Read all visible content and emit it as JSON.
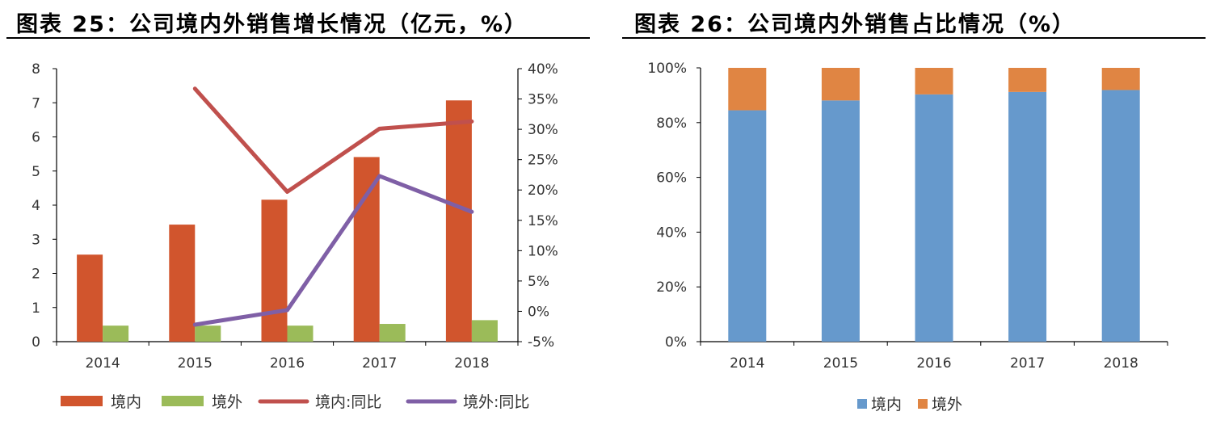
{
  "left_panel": {
    "title": "图表 25：公司境内外销售增长情况（亿元，%）"
  },
  "right_panel": {
    "title": "图表 26：公司境内外销售占比情况（%）"
  },
  "chart_data": [
    {
      "type": "bar",
      "categories": [
        "2014",
        "2015",
        "2016",
        "2017",
        "2018"
      ],
      "series": [
        {
          "name": "境内",
          "type": "bar",
          "axis": "left",
          "color": "#d1552d",
          "values": [
            2.55,
            3.43,
            4.16,
            5.41,
            7.07
          ]
        },
        {
          "name": "境外",
          "type": "bar",
          "axis": "left",
          "color": "#9bbb59",
          "values": [
            0.47,
            0.47,
            0.47,
            0.52,
            0.63
          ]
        },
        {
          "name": "境内:同比",
          "type": "line",
          "axis": "right",
          "color": "#c0504d",
          "values": [
            null,
            0.367,
            0.197,
            0.301,
            0.313
          ]
        },
        {
          "name": "境外:同比",
          "type": "line",
          "axis": "right",
          "color": "#7f5fa6",
          "values": [
            null,
            -0.022,
            0.002,
            0.223,
            0.164
          ]
        }
      ],
      "y_left": {
        "min": 0,
        "max": 8,
        "ticks": [
          "0",
          "1",
          "2",
          "3",
          "4",
          "5",
          "6",
          "7",
          "8"
        ]
      },
      "y_right": {
        "min": -0.05,
        "max": 0.4,
        "ticks": [
          "-5%",
          "0%",
          "5%",
          "10%",
          "15%",
          "20%",
          "25%",
          "30%",
          "35%",
          "40%"
        ]
      },
      "legend_position": "bottom",
      "grid": false
    },
    {
      "type": "bar",
      "stacked": true,
      "categories": [
        "2014",
        "2015",
        "2016",
        "2017",
        "2018"
      ],
      "series": [
        {
          "name": "境内",
          "color": "#6699cc",
          "values": [
            0.845,
            0.881,
            0.903,
            0.912,
            0.919
          ]
        },
        {
          "name": "境外",
          "color": "#e08543",
          "values": [
            0.155,
            0.119,
            0.097,
            0.088,
            0.081
          ]
        }
      ],
      "y": {
        "min": 0,
        "max": 1,
        "ticks": [
          "0%",
          "20%",
          "40%",
          "60%",
          "80%",
          "100%"
        ]
      },
      "legend_position": "bottom",
      "grid": false
    }
  ]
}
